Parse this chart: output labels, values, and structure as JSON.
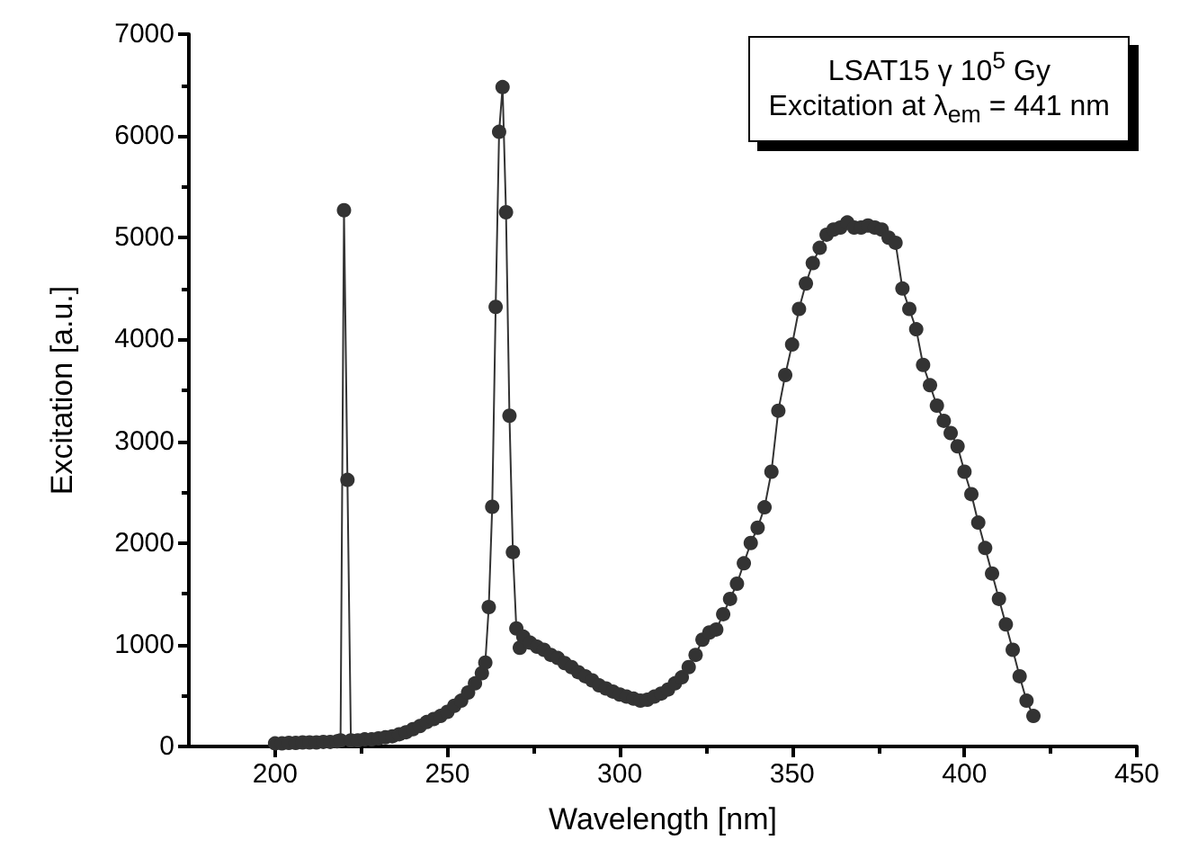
{
  "chart_data": {
    "type": "line",
    "xlabel": "Wavelength [nm]",
    "ylabel": "Excitation [a.u.]",
    "annotations": [
      "LSAT15 γ 10$^{5}$ Gy",
      "Excitation at λ$_{em}$ = 441 nm"
    ],
    "xlim": [
      175,
      450
    ],
    "xticks": [
      200,
      250,
      300,
      350,
      400,
      450
    ],
    "ylim": [
      0,
      7000
    ],
    "yticks": [
      0,
      1000,
      2000,
      3000,
      4000,
      5000,
      6000,
      7000
    ],
    "grid": false,
    "marker": "circle",
    "line_style": "solid",
    "series": [
      {
        "color": "#333333",
        "x": [
          200,
          202,
          204,
          206,
          208,
          210,
          212,
          214,
          216,
          218,
          219,
          220,
          221,
          222,
          224,
          226,
          228,
          230,
          232,
          234,
          236,
          238,
          240,
          242,
          244,
          246,
          248,
          250,
          252,
          254,
          256,
          258,
          260,
          261,
          262,
          263,
          264,
          265,
          266,
          267,
          268,
          269,
          270,
          271,
          272,
          274,
          276,
          278,
          280,
          282,
          284,
          286,
          288,
          290,
          292,
          294,
          296,
          298,
          300,
          302,
          304,
          306,
          308,
          310,
          312,
          314,
          316,
          318,
          320,
          322,
          324,
          326,
          328,
          330,
          332,
          334,
          336,
          338,
          340,
          342,
          344,
          346,
          348,
          350,
          352,
          354,
          356,
          358,
          360,
          362,
          364,
          366,
          368,
          370,
          372,
          374,
          376,
          378,
          380,
          382,
          384,
          386,
          388,
          390,
          392,
          394,
          396,
          398,
          400,
          402,
          404,
          406,
          408,
          410,
          412,
          414,
          416,
          418,
          420
        ],
        "values": [
          30,
          30,
          35,
          35,
          40,
          40,
          40,
          45,
          45,
          50,
          60,
          5270,
          2620,
          60,
          60,
          70,
          70,
          80,
          90,
          100,
          120,
          140,
          170,
          200,
          240,
          270,
          300,
          340,
          400,
          450,
          530,
          620,
          720,
          825,
          1370,
          2355,
          4320,
          6040,
          6480,
          5250,
          3250,
          1910,
          1160,
          970,
          1080,
          1020,
          980,
          950,
          900,
          870,
          820,
          780,
          730,
          690,
          650,
          600,
          570,
          540,
          510,
          490,
          470,
          450,
          460,
          490,
          520,
          560,
          620,
          680,
          780,
          900,
          1050,
          1120,
          1150,
          1300,
          1450,
          1600,
          1800,
          2000,
          2150,
          2350,
          2700,
          3300,
          3650,
          3950,
          4300,
          4550,
          4750,
          4900,
          5030,
          5080,
          5100,
          5150,
          5100,
          5100,
          5120,
          5100,
          5080,
          5000,
          4950,
          4500,
          4300,
          4100,
          3750,
          3550,
          3350,
          3200,
          3080,
          2950,
          2700,
          2480,
          2200,
          1950,
          1700,
          1450,
          1200,
          950,
          690,
          450,
          300
        ]
      }
    ]
  }
}
